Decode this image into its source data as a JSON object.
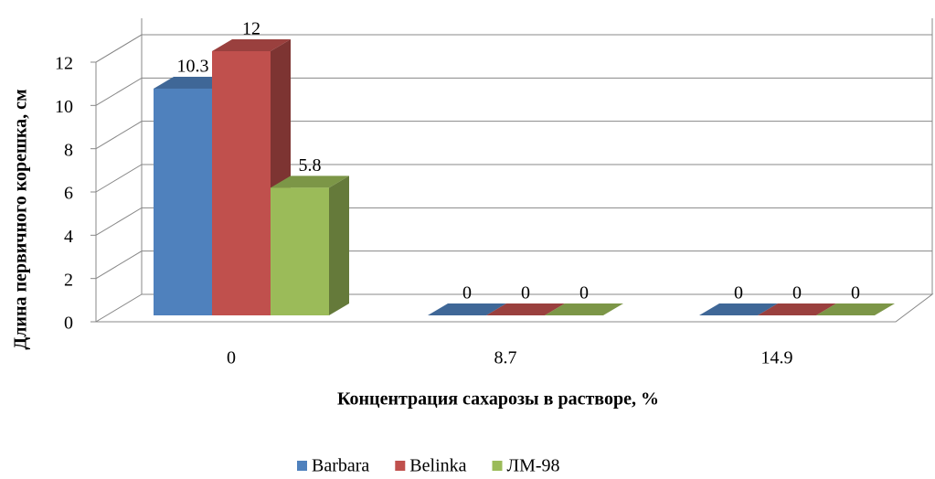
{
  "chart_data": {
    "type": "bar3d",
    "categories": [
      "0",
      "8.7",
      "14.9"
    ],
    "series": [
      {
        "name": "Barbara",
        "color": "#4f81bd",
        "values": [
          10.3,
          0,
          0
        ]
      },
      {
        "name": "Belinka",
        "color": "#c0504d",
        "values": [
          12,
          0,
          0
        ]
      },
      {
        "name": "ЛМ-98",
        "color": "#9bbb59",
        "values": [
          5.8,
          0,
          0
        ]
      }
    ],
    "ylim": [
      0,
      12
    ],
    "yticks": [
      0,
      2,
      4,
      6,
      8,
      10,
      12
    ],
    "grid": true,
    "x_label": "Концентрация сахарозы в растворе, %",
    "y_label": "Длина первичного корешка, см",
    "legend": "bottom"
  }
}
